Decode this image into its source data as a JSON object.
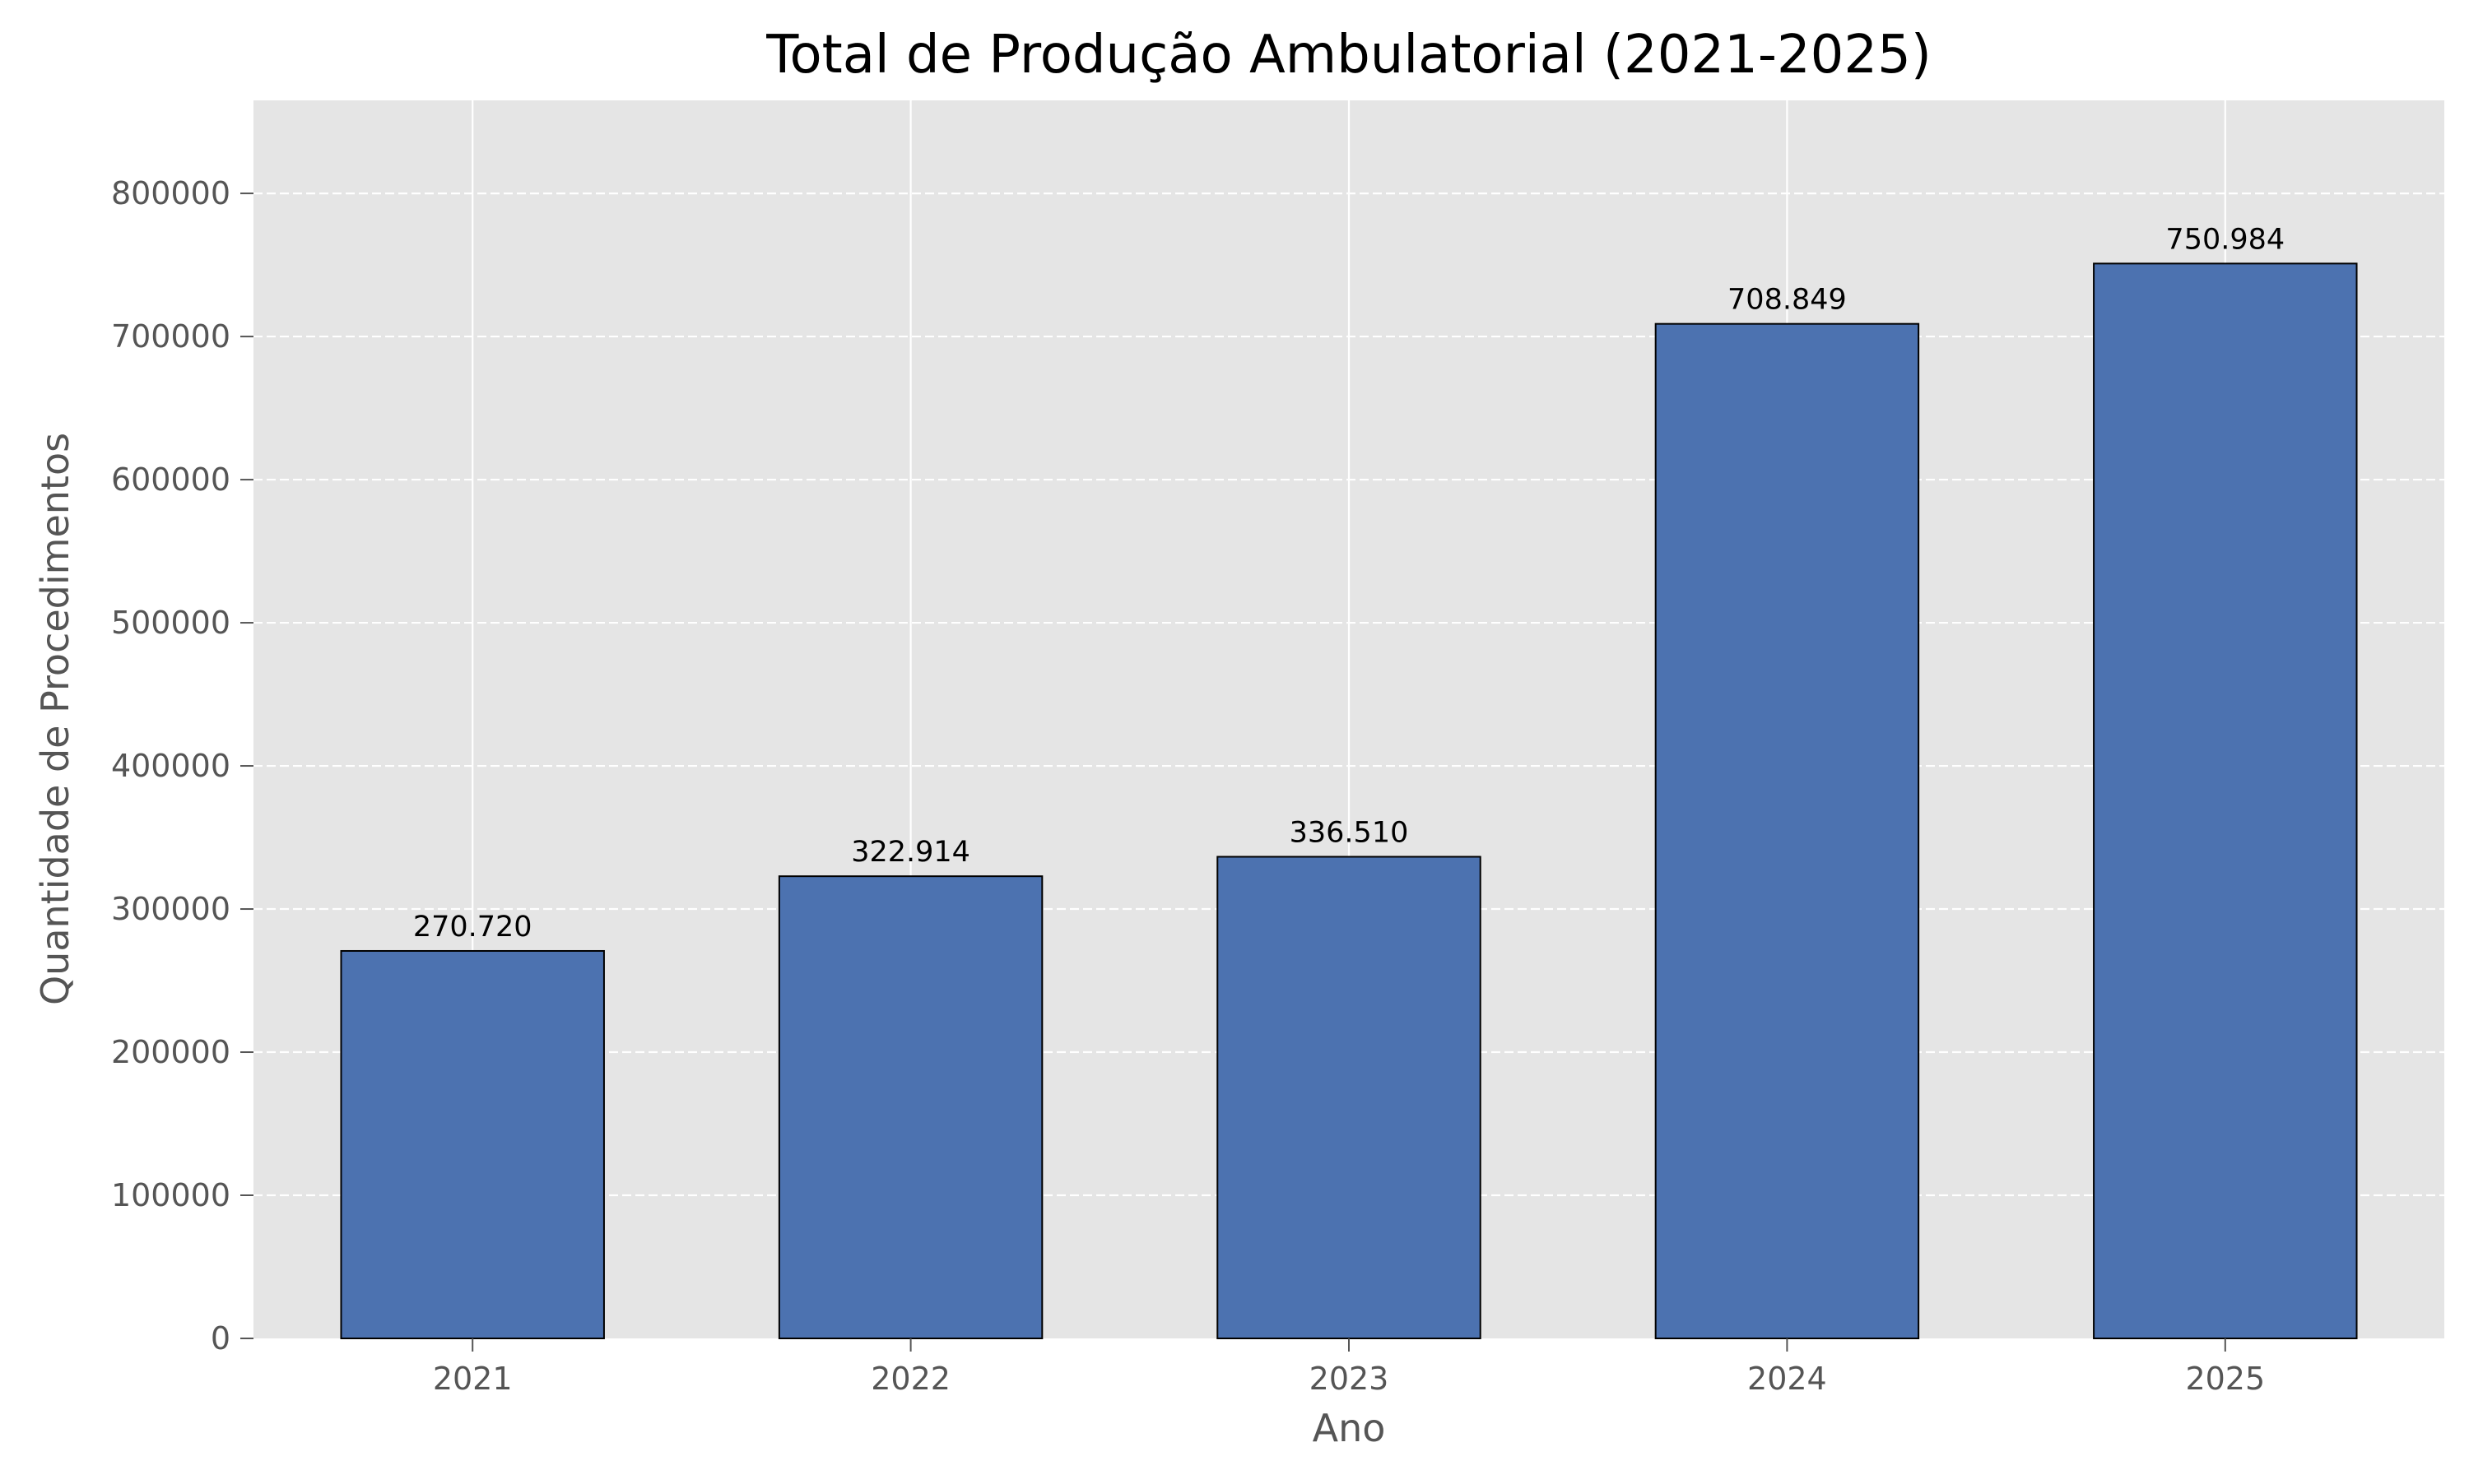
{
  "chart_data": {
    "type": "bar",
    "title": "Total de Produção Ambulatorial (2021-2025)",
    "xlabel": "Ano",
    "ylabel": "Quantidade de Procedimentos",
    "categories": [
      "2021",
      "2022",
      "2023",
      "2024",
      "2025"
    ],
    "values": [
      270720,
      322914,
      336510,
      708849,
      750984
    ],
    "data_labels": [
      "270.720",
      "322.914",
      "336.510",
      "708.849",
      "750.984"
    ],
    "ylim": [
      0,
      865000
    ],
    "yticks": [
      0,
      100000,
      200000,
      300000,
      400000,
      500000,
      600000,
      700000,
      800000
    ],
    "ytick_labels": [
      "0",
      "100000",
      "200000",
      "300000",
      "400000",
      "500000",
      "600000",
      "700000",
      "800000"
    ],
    "grid": true,
    "colors": {
      "bar": "#4c72b0",
      "bar_edge": "#000000",
      "plot_background": "#e5e5e5",
      "grid": "#ffffff",
      "axis_text": "#555555",
      "title_text": "#000000"
    }
  }
}
